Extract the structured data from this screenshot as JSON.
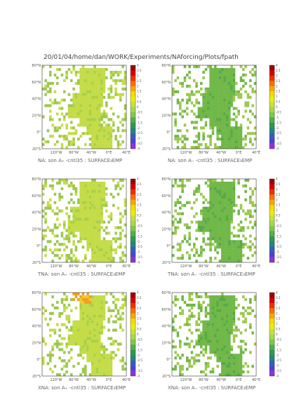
{
  "header": {
    "path": "20/01/04/home/dan/WORK/Experiments/NAforcing/Plots/fpath"
  },
  "lat_labels": [
    "80°N",
    "60°N",
    "40°N",
    "20°N",
    "0°",
    "20°S"
  ],
  "lon_labels": [
    "120°W",
    "80°W",
    "40°W",
    "0°E",
    "40°E"
  ],
  "colorbar": {
    "ticks": [
      4,
      3.5,
      3,
      2.5,
      2,
      1.5,
      1,
      0.5,
      0,
      -0.5,
      -1,
      -1.5,
      -2,
      -2.5,
      -3,
      -3.5,
      -4
    ],
    "colors": [
      "#a00000",
      "#d80000",
      "#f03000",
      "#f87000",
      "#f8a800",
      "#f8d800",
      "#e8f000",
      "#c8e040",
      "#a8d848",
      "#80c848",
      "#50b048",
      "#309850",
      "#208878",
      "#3060c0",
      "#5040d0",
      "#9030e0"
    ]
  },
  "panels": [
    {
      "caption": "NA: son A₊ -cntl35 : SURFACE₃EMP"
    },
    {
      "caption": "NA: son A₋ -cntl35 : SURFACE₃EMP"
    },
    {
      "caption": "TNA: son A₊ -cntl35 : SURFACE₃EMP"
    },
    {
      "caption": "TNA: son A₋ -cntl35 : SURFACE₃EMP"
    },
    {
      "caption": "XNA: son A₊ -cntl35 : SURFACE₃EMP"
    },
    {
      "caption": "XNA: son A₋ -cntl35 : SURFACE₃EMP"
    }
  ]
}
